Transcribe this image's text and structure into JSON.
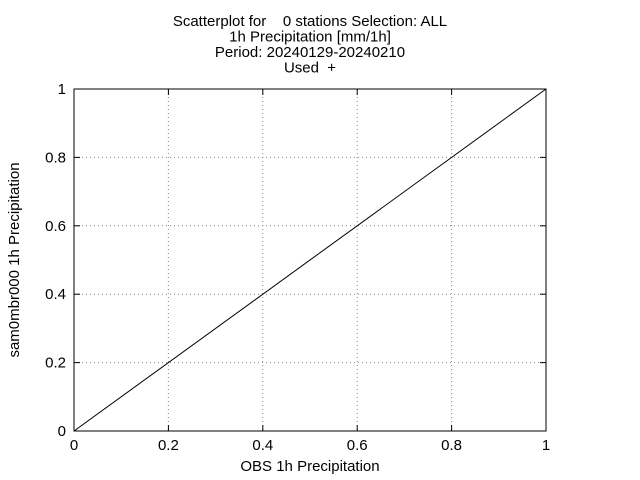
{
  "chart_data": {
    "type": "scatter",
    "title_lines": [
      "Scatterplot for    0 stations Selection: ALL",
      "1h Precipitation [mm/1h]",
      "Period: 20240129-20240210",
      "Used  +"
    ],
    "xlabel": "OBS 1h Precipitation",
    "ylabel": "sam0mbr000 1h Precipitation",
    "xlim": [
      0,
      1
    ],
    "ylim": [
      0,
      1
    ],
    "x_ticks": [
      "0",
      "0.2",
      "0.4",
      "0.6",
      "0.8",
      "1"
    ],
    "y_ticks": [
      "0",
      "0.2",
      "0.4",
      "0.6",
      "0.8",
      "1"
    ],
    "grid": true,
    "reference_line": {
      "x": [
        0,
        1
      ],
      "y": [
        0,
        1
      ]
    },
    "series": [
      {
        "marker": "+",
        "x": [],
        "y": []
      }
    ]
  }
}
